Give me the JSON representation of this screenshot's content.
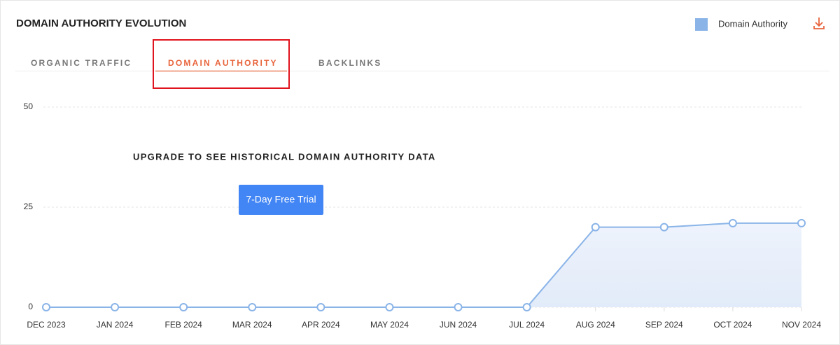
{
  "chart_data": {
    "type": "line",
    "title": "DOMAIN AUTHORITY EVOLUTION",
    "categories": [
      "DEC 2023",
      "JAN 2024",
      "FEB 2024",
      "MAR 2024",
      "APR 2024",
      "MAY 2024",
      "JUN 2024",
      "JUL 2024",
      "AUG 2024",
      "SEP 2024",
      "OCT 2024",
      "NOV 2024"
    ],
    "series": [
      {
        "name": "Domain Authority",
        "color": "#8ab4e8",
        "values": [
          0,
          0,
          0,
          0,
          0,
          0,
          0,
          0,
          20,
          20,
          21,
          21
        ]
      }
    ],
    "ylim": [
      0,
      50
    ],
    "yticks": [
      0,
      25,
      50
    ],
    "grid": true,
    "area": true,
    "legend": "top-right"
  },
  "tabs": [
    "ORGANIC TRAFFIC",
    "DOMAIN AUTHORITY",
    "BACKLINKS"
  ],
  "active_tab": 1,
  "overlay_message": "UPGRADE TO SEE HISTORICAL DOMAIN AUTHORITY DATA",
  "button": "7-Day Free Trial"
}
